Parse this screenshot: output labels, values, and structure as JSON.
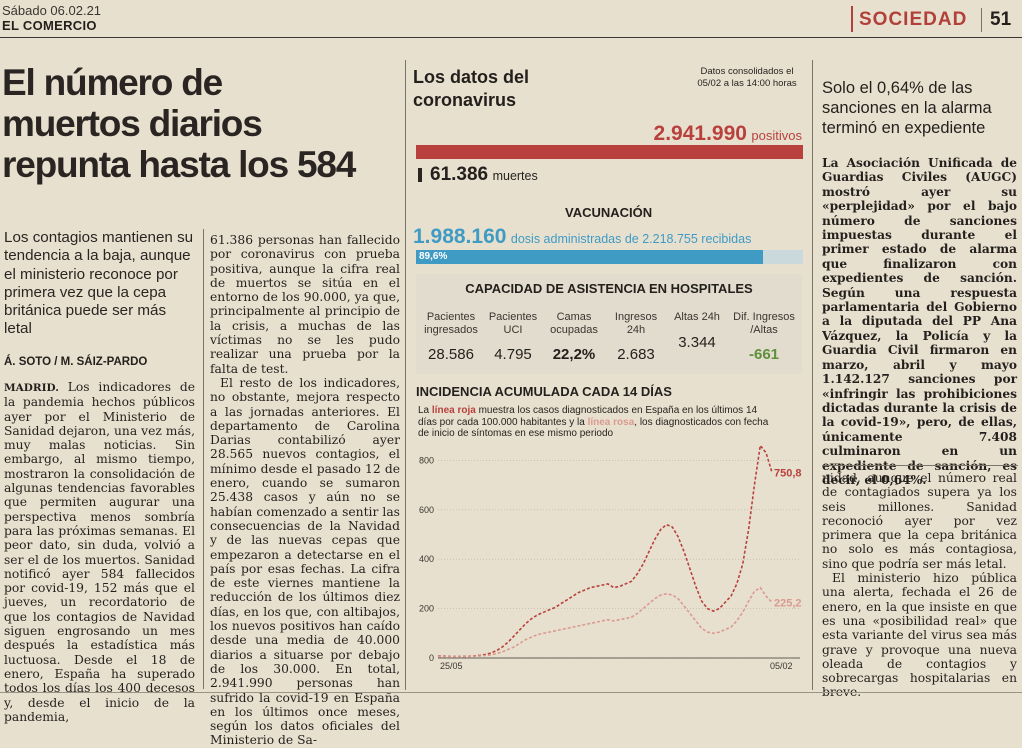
{
  "masthead": {
    "date": "Sábado 06.02.21",
    "paper": "EL COMERCIO",
    "section": "SOCIEDAD",
    "page_number": "51"
  },
  "main_article": {
    "headline": [
      "El número de",
      "muertos diarios",
      "repunta hasta los 584"
    ],
    "subhead": "Los contagios mantienen su tendencia a la baja, aunque el ministerio reconoce por primera vez que la cepa británica puede ser más letal",
    "byline": "Á. SOTO / M. SÁIZ-PARDO",
    "dateline": "MADRID.",
    "col1": "Los indicadores de la pandemia hechos públicos ayer por el Ministerio de Sanidad dejaron, una vez más, muy malas noticias. Sin embargo, al mismo tiempo, mostraron la consolidación de algunas tendencias favorables que permiten augurar una perspectiva menos sombría para las próximas semanas. El peor dato, sin duda, volvió a ser el de los muertos. Sanidad notificó ayer 584 fallecidos por covid-19, 152 más que el jueves, un recordatorio de que los contagios de Navidad siguen engrosando un mes después la estadística más luctuosa. Desde el 18 de enero, España ha superado todos los días los 400 decesos y, desde el inicio de la pandemia,",
    "col2_p1": "61.386 personas han fallecido por coronavirus con prueba positiva, aunque la cifra real de muertos se sitúa en el entorno de los 90.000, ya que, principalmente al principio de la crisis, a muchas de las víctimas no se les pudo realizar una prueba por la falta de test.",
    "col2_p2": "El resto de los indicadores, no obstante, mejora respecto a las jornadas anteriores. El departamento de Carolina Darias contabilizó ayer 28.565 nuevos contagios, el mínimo desde el pasado 12 de enero, cuando se sumaron 25.438 casos y aún no se habían comenzado a sentir las consecuencias de la Navidad y de las nuevas cepas que empezaron a detectarse en el país por esas fechas. La cifra de este viernes mantiene la reducción de los últimos diez días, en los que, con altibajos, los nuevos positivos han caído desde una media de 40.000 diarios a situarse por debajo de los 30.000. En total, 2.941.990 personas han sufrido la covid-19 en España en los últimos once meses, según los datos oficiales del Ministerio de Sa-"
  },
  "infographic": {
    "title": "Los datos del coronavirus",
    "note": "Datos consolidados el 05/02 a las 14:00 horas",
    "positivos_value": "2.941.990",
    "positivos_label": "positivos",
    "muertes_value": "61.386",
    "muertes_label": "muertes",
    "vacunacion_title": "VACUNACIÓN",
    "vacunacion_value": "1.988.160",
    "vacunacion_text": "dosis administradas de 2.218.755 recibidas",
    "vacunacion_pct": "89,6%",
    "vacunacion_fraction": 0.896,
    "hospitales_title": "CAPACIDAD DE ASISTENCIA EN HOSPITALES",
    "hospitales": [
      {
        "label": "Pacientes ingresados",
        "value": "28.586"
      },
      {
        "label": "Pacientes UCI",
        "value": "4.795"
      },
      {
        "label": "Camas ocupadas",
        "value": "22,2%"
      },
      {
        "label": "Ingresos 24h",
        "value": "2.683"
      },
      {
        "label": "Altas 24h",
        "value": "3.344"
      },
      {
        "label": "Dif. Ingresos /Altas",
        "value": "-661"
      }
    ],
    "incidencia_title": "INCIDENCIA ACUMULADA CADA 14 DÍAS",
    "incidencia_text_1": "La",
    "incidencia_red": "línea roja",
    "incidencia_text_2": "muestra los casos diagnosticados en España en los últimos 14 días por cada 100.000 habitantes y la",
    "incidencia_pink": "línea rosa",
    "incidencia_text_3": ", los diagnosticados con fecha de inicio de síntomas en ese mismo periodo",
    "colors": {
      "red": "#b8413d",
      "pink": "#d99a8f",
      "blue": "#3f9bc4",
      "green": "#5f8f3a"
    }
  },
  "chart_data": {
    "type": "line",
    "x_labels": [
      "25/05",
      "05/02"
    ],
    "ylim": [
      0,
      850
    ],
    "y_ticks": [
      0,
      200,
      400,
      600,
      800
    ],
    "end_labels": [
      "750,8",
      "225,2"
    ],
    "series": [
      {
        "color": "#b8413d",
        "values": [
          8,
          7,
          6,
          6,
          6,
          7,
          8,
          10,
          14,
          20,
          30,
          45,
          65,
          90,
          115,
          140,
          160,
          175,
          185,
          195,
          205,
          220,
          235,
          250,
          265,
          275,
          285,
          290,
          295,
          300,
          285,
          290,
          300,
          310,
          340,
          380,
          430,
          480,
          520,
          540,
          530,
          490,
          430,
          360,
          290,
          230,
          200,
          190,
          200,
          225,
          250,
          300,
          380,
          520,
          700,
          860,
          830,
          750.8
        ]
      },
      {
        "color": "#d99a8f",
        "values": [
          6,
          5,
          5,
          5,
          5,
          6,
          7,
          8,
          10,
          12,
          18,
          25,
          35,
          45,
          60,
          75,
          85,
          95,
          100,
          105,
          110,
          115,
          120,
          125,
          130,
          135,
          140,
          145,
          150,
          155,
          150,
          155,
          160,
          165,
          180,
          200,
          220,
          240,
          255,
          260,
          255,
          240,
          210,
          180,
          150,
          120,
          105,
          100,
          105,
          115,
          125,
          150,
          185,
          230,
          270,
          285,
          250,
          225.2
        ]
      }
    ]
  },
  "sidebar": {
    "headline": "Solo el 0,64% de las sanciones en la alarma terminó en expediente",
    "lead": "La Asociación Unificada de Guardias Civiles (AUGC) mostró ayer su «perplejidad» por el bajo número de sanciones impuestas durante el primer estado de alarma que finalizaron con expedientes de sanción. Según una respuesta parlamentaria del Gobierno a la diputada del PP Ana Vázquez, la Policía y la Guardia Civil firmaron en marzo, abril y mayo 1.142.127 sanciones por «infringir las prohibiciones dictadas durante la crisis de la covid-19», pero, de ellas, únicamente 7.408 culminaron en un expediente de sanción, es decir, el 0,64%.",
    "body_p1": "nidad, aunque el número real de contagiados supera ya los seis millones. Sanidad reconoció ayer por vez primera que la cepa británica no solo es más contagiosa, sino que podría ser más letal.",
    "body_p2": "El ministerio hizo pública una alerta, fechada el 26 de enero, en la que insiste en que es una «posibilidad real» que esta variante del virus sea más grave y provoque una nueva oleada de contagios y sobrecargas hospitalarias en breve."
  }
}
